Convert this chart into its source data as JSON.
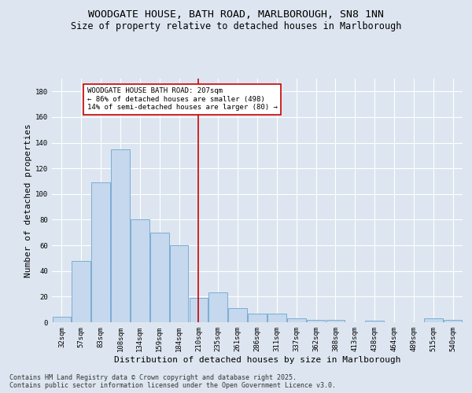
{
  "title": "WOODGATE HOUSE, BATH ROAD, MARLBOROUGH, SN8 1NN",
  "subtitle": "Size of property relative to detached houses in Marlborough",
  "xlabel": "Distribution of detached houses by size in Marlborough",
  "ylabel": "Number of detached properties",
  "categories": [
    "32sqm",
    "57sqm",
    "83sqm",
    "108sqm",
    "134sqm",
    "159sqm",
    "184sqm",
    "210sqm",
    "235sqm",
    "261sqm",
    "286sqm",
    "311sqm",
    "337sqm",
    "362sqm",
    "388sqm",
    "413sqm",
    "438sqm",
    "464sqm",
    "489sqm",
    "515sqm",
    "540sqm"
  ],
  "values": [
    4,
    48,
    109,
    135,
    80,
    70,
    60,
    19,
    23,
    11,
    7,
    7,
    3,
    2,
    2,
    0,
    1,
    0,
    0,
    3,
    2
  ],
  "bar_color": "#c5d8ed",
  "bar_edge_color": "#7aadd4",
  "background_color": "#dde6f0",
  "grid_color": "#ffffff",
  "vline_x": 7,
  "vline_color": "#cc0000",
  "annotation_text": "WOODGATE HOUSE BATH ROAD: 207sqm\n← 86% of detached houses are smaller (498)\n14% of semi-detached houses are larger (80) →",
  "annotation_box_color": "#ffffff",
  "annotation_box_edge": "#cc0000",
  "ylim": [
    0,
    190
  ],
  "yticks": [
    0,
    20,
    40,
    60,
    80,
    100,
    120,
    140,
    160,
    180
  ],
  "footer_line1": "Contains HM Land Registry data © Crown copyright and database right 2025.",
  "footer_line2": "Contains public sector information licensed under the Open Government Licence v3.0.",
  "title_fontsize": 9.5,
  "subtitle_fontsize": 8.5,
  "axis_label_fontsize": 8,
  "tick_fontsize": 6.5,
  "annotation_fontsize": 6.5,
  "footer_fontsize": 6
}
